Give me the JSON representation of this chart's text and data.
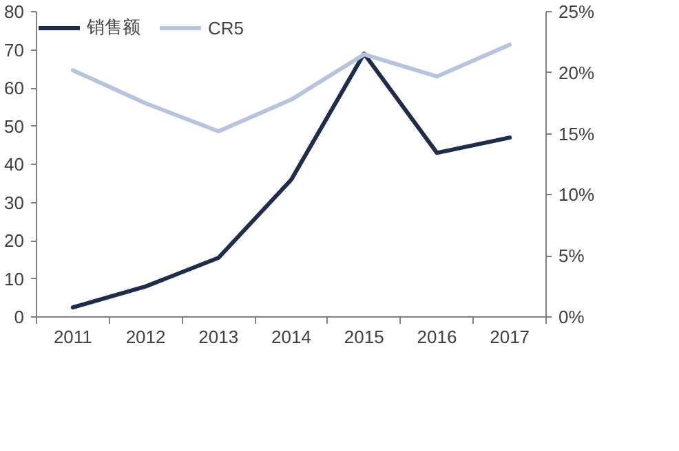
{
  "chart_data": {
    "type": "line",
    "categories": [
      "2011",
      "2012",
      "2013",
      "2014",
      "2015",
      "2016",
      "2017"
    ],
    "series": [
      {
        "name": "销售额",
        "color": "#1f2d4a",
        "values": [
          2.5,
          8,
          15.5,
          36,
          69,
          43,
          47
        ]
      },
      {
        "name": "CR5",
        "color": "#b8c4de",
        "axis": "y2",
        "values": [
          20.2,
          17.5,
          15.2,
          17.8,
          21.5,
          19.7,
          22.3
        ]
      }
    ],
    "ylim": [
      0,
      80
    ],
    "yticks": [
      0,
      10,
      20,
      30,
      40,
      50,
      60,
      70,
      80
    ],
    "y2lim": [
      0,
      25
    ],
    "y2ticks": [
      {
        "value": 0,
        "label": "0%"
      },
      {
        "value": 5,
        "label": "5%"
      },
      {
        "value": 10,
        "label": "10%"
      },
      {
        "value": 15,
        "label": "15%"
      },
      {
        "value": 20,
        "label": "20%"
      },
      {
        "value": 25,
        "label": "25%"
      }
    ],
    "grid": false,
    "legend": "top left",
    "marker": "none",
    "line_style": "solid"
  }
}
